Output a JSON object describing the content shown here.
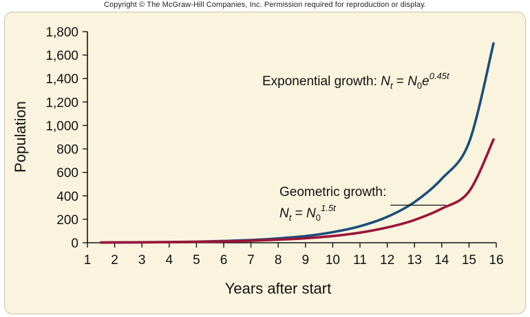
{
  "header": {
    "copyright": "Copyright © The McGraw-Hill Companies, Inc. Permission required for reproduction or display."
  },
  "chart_data": {
    "type": "line",
    "xlabel": "Years after start",
    "ylabel": "Population",
    "xlim": [
      1,
      16
    ],
    "ylim": [
      0,
      1800
    ],
    "x_ticks": [
      "1",
      "2",
      "3",
      "4",
      "5",
      "6",
      "7",
      "8",
      "9",
      "10",
      "11",
      "12",
      "13",
      "14",
      "15",
      "16"
    ],
    "y_ticks": [
      "0",
      "200",
      "400",
      "600",
      "800",
      "1,000",
      "1,200",
      "1,400",
      "1,600",
      "1,800"
    ],
    "grid": false,
    "series": [
      {
        "color": "#1b4f7a",
        "x": [
          1.5,
          2,
          3,
          4,
          5,
          6,
          7,
          8,
          9,
          10,
          11,
          12,
          13,
          14,
          15,
          15.9
        ],
        "y": [
          2,
          2.5,
          4,
          6,
          9,
          15,
          23,
          37,
          57,
          90,
          141,
          221,
          347,
          545,
          855,
          1700
        ]
      },
      {
        "color": "#9b1438",
        "x": [
          1.5,
          2,
          3,
          4,
          5,
          6,
          7,
          8,
          9,
          10,
          11,
          12,
          13,
          14,
          15,
          15.9
        ],
        "y": [
          1.8,
          2.3,
          3.5,
          5,
          7.5,
          11,
          17,
          26,
          38,
          57,
          86,
          130,
          194,
          291,
          437,
          880
        ]
      }
    ],
    "annotations": {
      "exponential": {
        "label": "Exponential growth: ",
        "lhs": "N",
        "lhs_sub": "t",
        "eq": " = ",
        "rhs": "N",
        "rhs_sub": "0",
        "rhs_mid": "e",
        "rhs_sup": "0.45t"
      },
      "geometric": {
        "label": "Geometric growth:",
        "lhs": "N",
        "lhs_sub": "t",
        "eq": " = ",
        "rhs": "N",
        "rhs_sub": "0",
        "rhs_sup": "1.5t",
        "pointer_x": 14.2
      }
    }
  }
}
